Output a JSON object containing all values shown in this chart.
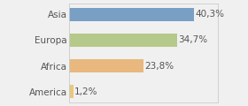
{
  "categories": [
    "America",
    "Africa",
    "Europa",
    "Asia"
  ],
  "values": [
    1.2,
    23.8,
    34.7,
    40.3
  ],
  "labels": [
    "1,2%",
    "23,8%",
    "34,7%",
    "40,3%"
  ],
  "bar_colors": [
    "#e8c87a",
    "#e8b87e",
    "#b5c98a",
    "#7a9fc4"
  ],
  "xlim": [
    0,
    48
  ],
  "background_color": "#f0f0f0",
  "label_fontsize": 7.5,
  "tick_fontsize": 7.5,
  "text_color": "#555555",
  "bar_height": 0.52
}
